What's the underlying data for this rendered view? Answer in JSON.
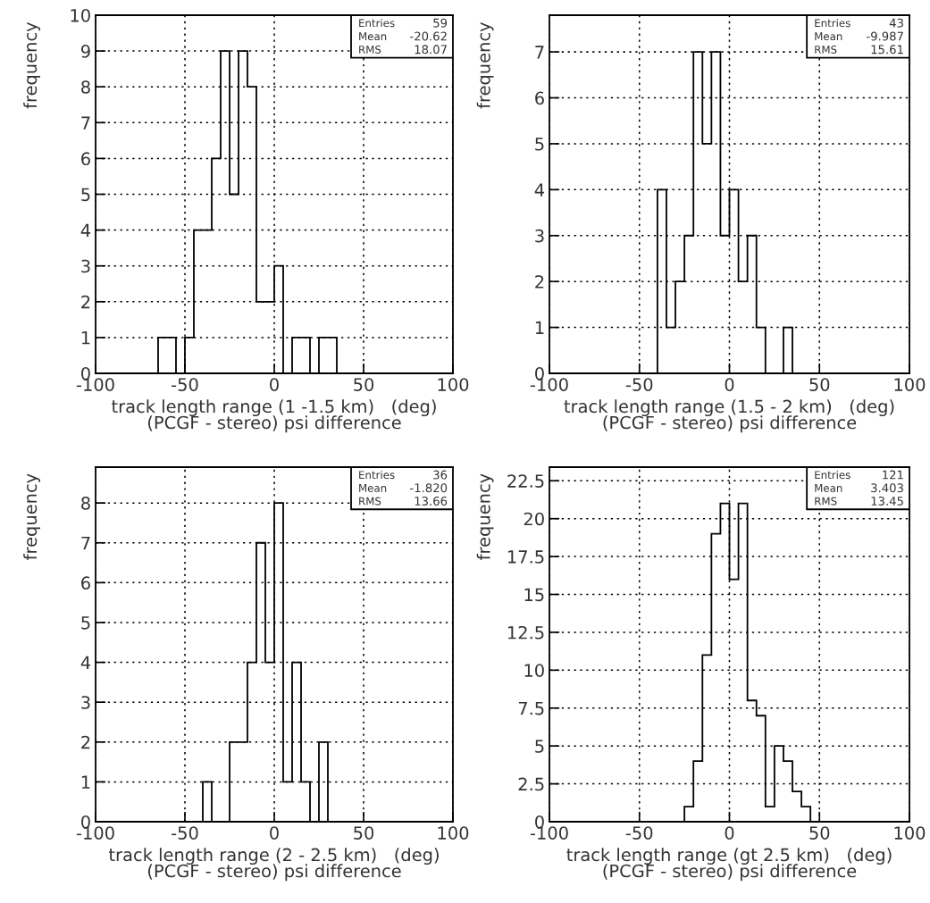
{
  "chart_data": [
    {
      "type": "histogram",
      "color": "#000000",
      "grid": true,
      "xlabel": "track length range (1 -1.5 km)   (deg)\n(PCGF - stereo) psi difference",
      "ylabel": "frequency",
      "bins": [
        -65,
        -60,
        -55,
        -50,
        -45,
        -40,
        -35,
        -30,
        -25,
        -20,
        -15,
        -10,
        -5,
        0,
        5,
        10,
        15,
        20,
        25,
        30,
        35
      ],
      "values": [
        1,
        1,
        0,
        1,
        4,
        4,
        6,
        9,
        5,
        9,
        8,
        2,
        2,
        3,
        0,
        1,
        1,
        0,
        1,
        1
      ],
      "xlim": [
        -100,
        100
      ],
      "xticks": [
        -100,
        -50,
        0,
        50,
        100
      ],
      "ylim": [
        0,
        10
      ],
      "yticks": [
        0,
        1,
        2,
        3,
        4,
        5,
        6,
        7,
        8,
        9,
        10
      ],
      "annotations": [
        "Entries",
        "59",
        "Mean",
        "-20.62",
        "RMS",
        "18.07"
      ]
    },
    {
      "type": "histogram",
      "color": "#000000",
      "grid": true,
      "xlabel": "track length range (1.5 - 2 km)   (deg)\n(PCGF - stereo) psi difference",
      "ylabel": "frequency",
      "bins": [
        -40,
        -35,
        -30,
        -25,
        -20,
        -15,
        -10,
        -5,
        0,
        5,
        10,
        15,
        20,
        25,
        30,
        35
      ],
      "values": [
        4,
        1,
        2,
        3,
        7,
        5,
        7,
        3,
        4,
        2,
        3,
        1,
        0,
        0,
        1
      ],
      "xlim": [
        -100,
        100
      ],
      "xticks": [
        -100,
        -50,
        0,
        50,
        100
      ],
      "ylim": [
        0,
        7.8
      ],
      "yticks": [
        0,
        1,
        2,
        3,
        4,
        5,
        6,
        7
      ],
      "annotations": [
        "Entries",
        "43",
        "Mean",
        "-9.987",
        "RMS",
        "15.61"
      ]
    },
    {
      "type": "histogram",
      "color": "#000000",
      "grid": true,
      "xlabel": "track length range (2 - 2.5 km)   (deg)\n(PCGF - stereo) psi difference",
      "ylabel": "frequency",
      "bins": [
        -40,
        -35,
        -30,
        -25,
        -20,
        -15,
        -10,
        -5,
        0,
        5,
        10,
        15,
        20,
        25,
        30
      ],
      "values": [
        1,
        0,
        0,
        2,
        2,
        4,
        7,
        4,
        8,
        1,
        4,
        1,
        0,
        2
      ],
      "xlim": [
        -100,
        100
      ],
      "xticks": [
        -100,
        -50,
        0,
        50,
        100
      ],
      "ylim": [
        0,
        8.9
      ],
      "yticks": [
        0,
        1,
        2,
        3,
        4,
        5,
        6,
        7,
        8
      ],
      "annotations": [
        "Entries",
        "36",
        "Mean",
        "-1.820",
        "RMS",
        "13.66"
      ]
    },
    {
      "type": "histogram",
      "color": "#000000",
      "grid": true,
      "xlabel": "track length range (gt 2.5 km)   (deg)\n(PCGF - stereo) psi difference",
      "ylabel": "frequency",
      "bins": [
        -25,
        -20,
        -15,
        -10,
        -5,
        0,
        5,
        10,
        15,
        20,
        25,
        30,
        35,
        40,
        45
      ],
      "values": [
        1,
        4,
        11,
        19,
        21,
        16,
        21,
        8,
        7,
        1,
        5,
        4,
        2,
        1
      ],
      "xlim": [
        -100,
        100
      ],
      "xticks": [
        -100,
        -50,
        0,
        50,
        100
      ],
      "ylim": [
        0,
        23.4
      ],
      "yticks": [
        0,
        2.5,
        5,
        7.5,
        10,
        12.5,
        15,
        17.5,
        20,
        22.5
      ],
      "annotations": [
        "Entries",
        "121",
        "Mean",
        "3.403",
        "RMS",
        "13.45"
      ]
    }
  ]
}
